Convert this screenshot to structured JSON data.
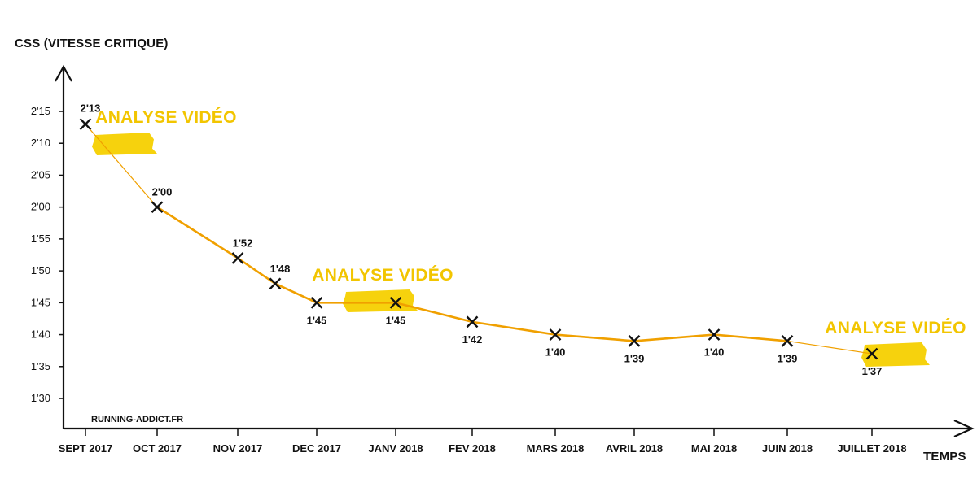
{
  "chart_data": {
    "type": "line",
    "ylabel": "CSS (VITESSE CRITIQUE)",
    "xlabel": "TEMPS",
    "watermark": "RUNNING-ADDICT.FR",
    "y_unit": "seconds per 100m (m'ss)",
    "ylim": [
      85,
      140
    ],
    "yticks": [
      {
        "value": 90,
        "label": "1'30"
      },
      {
        "value": 95,
        "label": "1'35"
      },
      {
        "value": 100,
        "label": "1'40"
      },
      {
        "value": 105,
        "label": "1'45"
      },
      {
        "value": 110,
        "label": "1'50"
      },
      {
        "value": 115,
        "label": "1'55"
      },
      {
        "value": 120,
        "label": "2'00"
      },
      {
        "value": 125,
        "label": "2'05"
      },
      {
        "value": 130,
        "label": "2'10"
      },
      {
        "value": 135,
        "label": "2'15"
      }
    ],
    "xticks": [
      {
        "date": "2017-09",
        "label": "SEPT 2017"
      },
      {
        "date": "2017-10",
        "label": "OCT 2017"
      },
      {
        "date": "2017-11",
        "label": "NOV 2017"
      },
      {
        "date": "2017-12",
        "label": "DEC 2017"
      },
      {
        "date": "2018-01",
        "label": "JANV 2018"
      },
      {
        "date": "2018-02",
        "label": "FEV 2018"
      },
      {
        "date": "2018-03",
        "label": "MARS 2018"
      },
      {
        "date": "2018-04",
        "label": "AVRIL 2018"
      },
      {
        "date": "2018-05",
        "label": "MAI 2018"
      },
      {
        "date": "2018-06",
        "label": "JUIN 2018"
      },
      {
        "date": "2018-07",
        "label": "JUILLET 2018"
      }
    ],
    "points": [
      {
        "date": "2017-09-01",
        "value": 133,
        "label": "2'13",
        "label_pos": "above"
      },
      {
        "date": "2017-10-01",
        "value": 120,
        "label": "2'00",
        "label_pos": "above"
      },
      {
        "date": "2017-11-01",
        "value": 112,
        "label": "1'52",
        "label_pos": "above"
      },
      {
        "date": "2017-11-15",
        "value": 108,
        "label": "1'48",
        "label_pos": "above"
      },
      {
        "date": "2017-12-01",
        "value": 105,
        "label": "1'45",
        "label_pos": "below"
      },
      {
        "date": "2018-01-01",
        "value": 105,
        "label": "1'45",
        "label_pos": "below"
      },
      {
        "date": "2018-02-01",
        "value": 102,
        "label": "1'42",
        "label_pos": "below"
      },
      {
        "date": "2018-03-01",
        "value": 100,
        "label": "1'40",
        "label_pos": "below"
      },
      {
        "date": "2018-04-01",
        "value": 99,
        "label": "1'39",
        "label_pos": "below"
      },
      {
        "date": "2018-05-01",
        "value": 100,
        "label": "1'40",
        "label_pos": "below"
      },
      {
        "date": "2018-06-01",
        "value": 99,
        "label": "1'39",
        "label_pos": "below"
      },
      {
        "date": "2018-07-01",
        "value": 97,
        "label": "1'37",
        "label_pos": "below"
      }
    ],
    "annotations": [
      {
        "text": "ANALYSE VIDÉO",
        "date": "2017-09-01"
      },
      {
        "text": "ANALYSE VIDÉO",
        "date": "2018-01-01"
      },
      {
        "text": "ANALYSE VIDÉO",
        "date": "2018-07-01"
      }
    ],
    "colors": {
      "line": "#f0a000",
      "marker": "#111111",
      "axis": "#111111",
      "annotation": "#f2c500",
      "highlight": "#f5d000"
    }
  }
}
